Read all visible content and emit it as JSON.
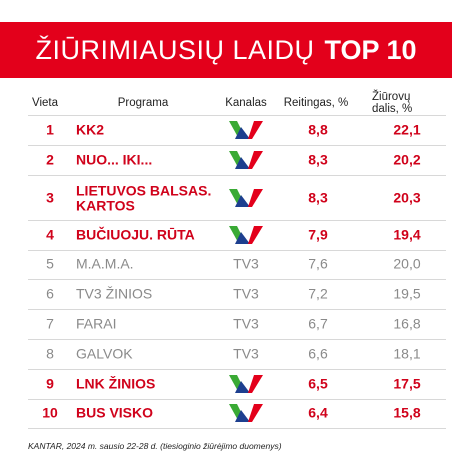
{
  "header": {
    "title_light": "ŽIŪRIMIAUSIŲ LAIDŲ",
    "title_bold": "TOP 10",
    "background": "#e3001b"
  },
  "table": {
    "columns": [
      "Vieta",
      "Programa",
      "Kanalas",
      "Reitingas, %",
      "Žiūrovų dalis, %"
    ],
    "rows": [
      {
        "rank": "1",
        "program": "KK2",
        "channel": null,
        "rating": "8,8",
        "share": "22,1",
        "color": "#d0021b"
      },
      {
        "rank": "2",
        "program": "NUO... IKI...",
        "channel": null,
        "rating": "8,3",
        "share": "20,2",
        "color": "#d0021b"
      },
      {
        "rank": "3",
        "program": "LIETUVOS BALSAS.\nKARTOS",
        "channel": null,
        "rating": "8,3",
        "share": "20,3",
        "color": "#d0021b"
      },
      {
        "rank": "4",
        "program": "BUČIUOJU. RŪTA",
        "channel": null,
        "rating": "7,9",
        "share": "19,4",
        "color": "#d0021b"
      },
      {
        "rank": "5",
        "program": "M.A.M.A.",
        "channel": "TV3",
        "rating": "7,6",
        "share": "20,0",
        "color": "#8a8a8a"
      },
      {
        "rank": "6",
        "program": "TV3 ŽINIOS",
        "channel": "TV3",
        "rating": "7,2",
        "share": "19,5",
        "color": "#8a8a8a"
      },
      {
        "rank": "7",
        "program": "FARAI",
        "channel": "TV3",
        "rating": "6,7",
        "share": "16,8",
        "color": "#8a8a8a"
      },
      {
        "rank": "8",
        "program": "GALVOK",
        "channel": "TV3",
        "rating": "6,6",
        "share": "18,1",
        "color": "#8a8a8a"
      },
      {
        "rank": "9",
        "program": "LNK ŽINIOS",
        "channel": null,
        "rating": "6,5",
        "share": "17,5",
        "color": "#d0021b"
      },
      {
        "rank": "10",
        "program": "BUS VISKO",
        "channel": null,
        "rating": "6,4",
        "share": "15,8",
        "color": "#d0021b"
      }
    ]
  },
  "footer": {
    "source": "KANTAR, 2024 m.  sausio 22-28 d. (tiesioginio žiūrėjimo duomenys)"
  }
}
